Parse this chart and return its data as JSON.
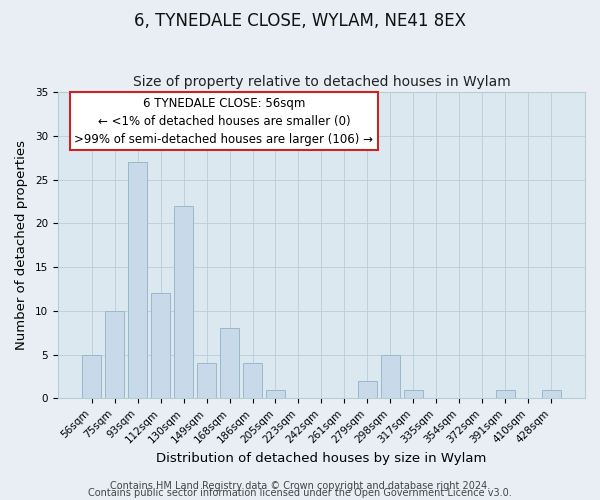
{
  "title": "6, TYNEDALE CLOSE, WYLAM, NE41 8EX",
  "subtitle": "Size of property relative to detached houses in Wylam",
  "xlabel": "Distribution of detached houses by size in Wylam",
  "ylabel": "Number of detached properties",
  "bar_color": "#c8daea",
  "bar_edge_color": "#9ab8cc",
  "highlight_bar_color": "#c8daea",
  "highlight_bar_edge_color": "#9ab8cc",
  "categories": [
    "56sqm",
    "75sqm",
    "93sqm",
    "112sqm",
    "130sqm",
    "149sqm",
    "168sqm",
    "186sqm",
    "205sqm",
    "223sqm",
    "242sqm",
    "261sqm",
    "279sqm",
    "298sqm",
    "317sqm",
    "335sqm",
    "354sqm",
    "372sqm",
    "391sqm",
    "410sqm",
    "428sqm"
  ],
  "values": [
    5,
    10,
    27,
    12,
    22,
    4,
    8,
    4,
    1,
    0,
    0,
    0,
    2,
    5,
    1,
    0,
    0,
    0,
    1,
    0,
    1
  ],
  "highlight_index": 0,
  "ylim": [
    0,
    35
  ],
  "yticks": [
    0,
    5,
    10,
    15,
    20,
    25,
    30,
    35
  ],
  "annotation_lines": [
    "6 TYNEDALE CLOSE: 56sqm",
    "← <1% of detached houses are smaller (0)",
    ">99% of semi-detached houses are larger (106) →"
  ],
  "footer1": "Contains HM Land Registry data © Crown copyright and database right 2024.",
  "footer2": "Contains public sector information licensed under the Open Government Licence v3.0.",
  "background_color": "#e8eef4",
  "plot_bg_color": "#dce8f0",
  "grid_color": "#b8ccd8",
  "annotation_edge_color": "#cc2222",
  "title_fontsize": 12,
  "subtitle_fontsize": 10,
  "tick_fontsize": 7.5,
  "label_fontsize": 9.5,
  "footer_fontsize": 7,
  "ann_fontsize": 8.5
}
